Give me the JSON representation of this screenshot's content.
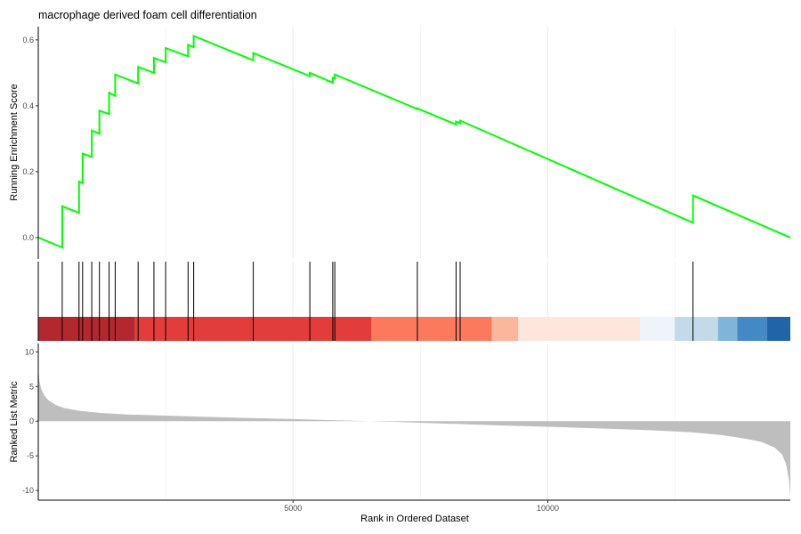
{
  "chart_data": {
    "type": "line",
    "title": "macrophage derived foam cell differentiation",
    "xlabel": "Rank in Ordered Dataset",
    "x_ticks": [
      5000,
      10000
    ],
    "x_tick_labels": [
      "5000",
      "10000"
    ],
    "xlim": [
      0,
      14760
    ],
    "grid": true,
    "es_panel": {
      "ylabel": "Running Enrichment Score",
      "ylim": [
        -0.065,
        0.64
      ],
      "y_ticks": [
        0.0,
        0.2,
        0.4,
        0.6
      ],
      "y_tick_labels": [
        "0.0",
        "0.2",
        "0.4",
        "0.6"
      ],
      "line_color": "#00FF00",
      "hit_ranks": [
        470,
        800,
        870,
        1050,
        1200,
        1390,
        1510,
        1960,
        2270,
        2500,
        2940,
        3050,
        4220,
        5330,
        5780,
        5820,
        7440,
        8200,
        8280,
        12850
      ],
      "series": [
        {
          "x": [
            0,
            470
          ],
          "y": [
            0.0,
            -0.03
          ]
        },
        {
          "x": [
            470,
            800
          ],
          "y": [
            0.095,
            0.075
          ]
        },
        {
          "x": [
            800,
            870
          ],
          "y": [
            0.17,
            0.165
          ]
        },
        {
          "x": [
            870,
            1050
          ],
          "y": [
            0.255,
            0.245
          ]
        },
        {
          "x": [
            1050,
            1200
          ],
          "y": [
            0.325,
            0.315
          ]
        },
        {
          "x": [
            1200,
            1390
          ],
          "y": [
            0.385,
            0.375
          ]
        },
        {
          "x": [
            1390,
            1510
          ],
          "y": [
            0.44,
            0.43
          ]
        },
        {
          "x": [
            1510,
            1960
          ],
          "y": [
            0.495,
            0.468
          ]
        },
        {
          "x": [
            1960,
            2270
          ],
          "y": [
            0.518,
            0.5
          ]
        },
        {
          "x": [
            2270,
            2500
          ],
          "y": [
            0.545,
            0.532
          ]
        },
        {
          "x": [
            2500,
            2940
          ],
          "y": [
            0.575,
            0.55
          ]
        },
        {
          "x": [
            2940,
            3050
          ],
          "y": [
            0.585,
            0.578
          ]
        },
        {
          "x": [
            3050,
            4220
          ],
          "y": [
            0.612,
            0.538
          ]
        },
        {
          "x": [
            4220,
            5330
          ],
          "y": [
            0.56,
            0.49
          ]
        },
        {
          "x": [
            5330,
            5780
          ],
          "y": [
            0.5,
            0.47
          ]
        },
        {
          "x": [
            5780,
            5820
          ],
          "y": [
            0.485,
            0.483
          ]
        },
        {
          "x": [
            5820,
            7440
          ],
          "y": [
            0.495,
            0.39
          ]
        },
        {
          "x": [
            7440,
            8200
          ],
          "y": [
            0.392,
            0.343
          ]
        },
        {
          "x": [
            8200,
            8280
          ],
          "y": [
            0.352,
            0.347
          ]
        },
        {
          "x": [
            8280,
            12850
          ],
          "y": [
            0.355,
            0.045
          ]
        },
        {
          "x": [
            12850,
            14760
          ],
          "y": [
            0.128,
            0.0
          ]
        }
      ]
    },
    "rank_heatmap": {
      "segments": [
        {
          "x0": 0,
          "x1": 1900,
          "color": "#B2282E"
        },
        {
          "x0": 1900,
          "x1": 6540,
          "color": "#E23D3B"
        },
        {
          "x0": 6540,
          "x1": 8900,
          "color": "#FB7A5E"
        },
        {
          "x0": 8900,
          "x1": 9420,
          "color": "#FCB69C"
        },
        {
          "x0": 9420,
          "x1": 11810,
          "color": "#FEE6DC"
        },
        {
          "x0": 11810,
          "x1": 12490,
          "color": "#EFF3FA"
        },
        {
          "x0": 12490,
          "x1": 13340,
          "color": "#C3DBE9"
        },
        {
          "x0": 13340,
          "x1": 13720,
          "color": "#7EB5D8"
        },
        {
          "x0": 13720,
          "x1": 14300,
          "color": "#4389C4"
        },
        {
          "x0": 14300,
          "x1": 14760,
          "color": "#2165A9"
        }
      ]
    },
    "metric_panel": {
      "ylabel": "Ranked List Metric",
      "ylim": [
        -11.4,
        11.2
      ],
      "y_ticks": [
        10,
        5,
        0,
        -5,
        -10
      ],
      "y_tick_labels": [
        "10",
        "5",
        "0",
        "-5",
        "-10"
      ],
      "fill_color": "#BEBEBE",
      "curve": {
        "x": [
          0,
          20,
          60,
          120,
          200,
          350,
          500,
          800,
          1200,
          1700,
          2300,
          3000,
          4000,
          5000,
          6000,
          7000,
          8000,
          9000,
          10000,
          11000,
          12000,
          12800,
          13400,
          13900,
          14200,
          14450,
          14600,
          14680,
          14730,
          14760
        ],
        "y": [
          8.0,
          5.8,
          4.6,
          3.7,
          3.0,
          2.3,
          1.9,
          1.5,
          1.2,
          0.98,
          0.85,
          0.68,
          0.48,
          0.3,
          0.1,
          -0.1,
          -0.35,
          -0.6,
          -0.8,
          -1.05,
          -1.3,
          -1.6,
          -2.0,
          -2.55,
          -3.0,
          -3.8,
          -4.8,
          -6.3,
          -8.3,
          -10.9
        ]
      }
    }
  }
}
